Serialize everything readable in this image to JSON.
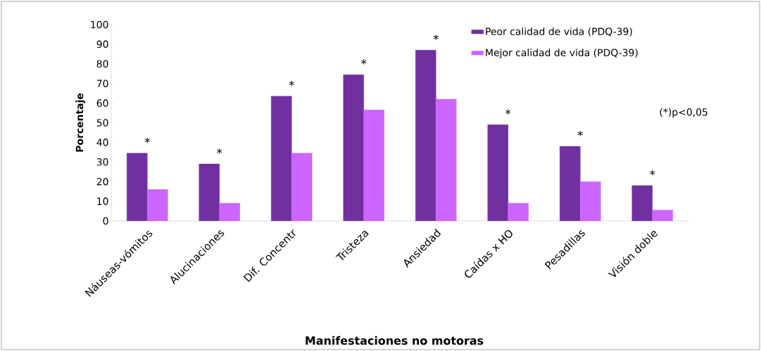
{
  "chart_data": {
    "type": "bar",
    "xlabel": "Manifestaciones no motoras",
    "ylabel": "Porcentaje",
    "categories": [
      "Náuseas-vómitos",
      "Alucinaciones",
      "Dif. Concentr",
      "Tristeza",
      "Ansiedad",
      "Caídas x HO",
      "Pesadillas",
      "Visión doble"
    ],
    "series": [
      {
        "name": "Peor calidad de vida (PDQ-39)",
        "color": "#7030a0",
        "values": [
          34.5,
          29,
          63.5,
          74.5,
          87,
          49,
          38,
          18
        ]
      },
      {
        "name": "Mejor calidad de vida (PDQ-39)",
        "color": "#cc66ff",
        "values": [
          16,
          9,
          34.5,
          56.5,
          62,
          9,
          20,
          5.5
        ]
      }
    ],
    "ylim": [
      0,
      100
    ],
    "yticks": [
      0,
      10,
      20,
      30,
      40,
      50,
      60,
      70,
      80,
      90,
      100
    ],
    "grid": false,
    "legend": "top right",
    "annotations": [
      {
        "text": "*",
        "x": "Náuseas-vómitos",
        "y": 34.5
      },
      {
        "text": "*",
        "x": "Alucinaciones",
        "y": 29
      },
      {
        "text": "*",
        "x": "Dif. Concentr",
        "y": 63.5
      },
      {
        "text": "*",
        "x": "Tristeza",
        "y": 74.5
      },
      {
        "text": "*",
        "x": "Ansiedad",
        "y": 87
      },
      {
        "text": "*",
        "x": "Caídas x HO",
        "y": 49
      },
      {
        "text": "*",
        "x": "Pesadillas",
        "y": 38
      },
      {
        "text": "*",
        "x": "Visión doble",
        "y": 18
      },
      "(*)p<0,05"
    ]
  }
}
